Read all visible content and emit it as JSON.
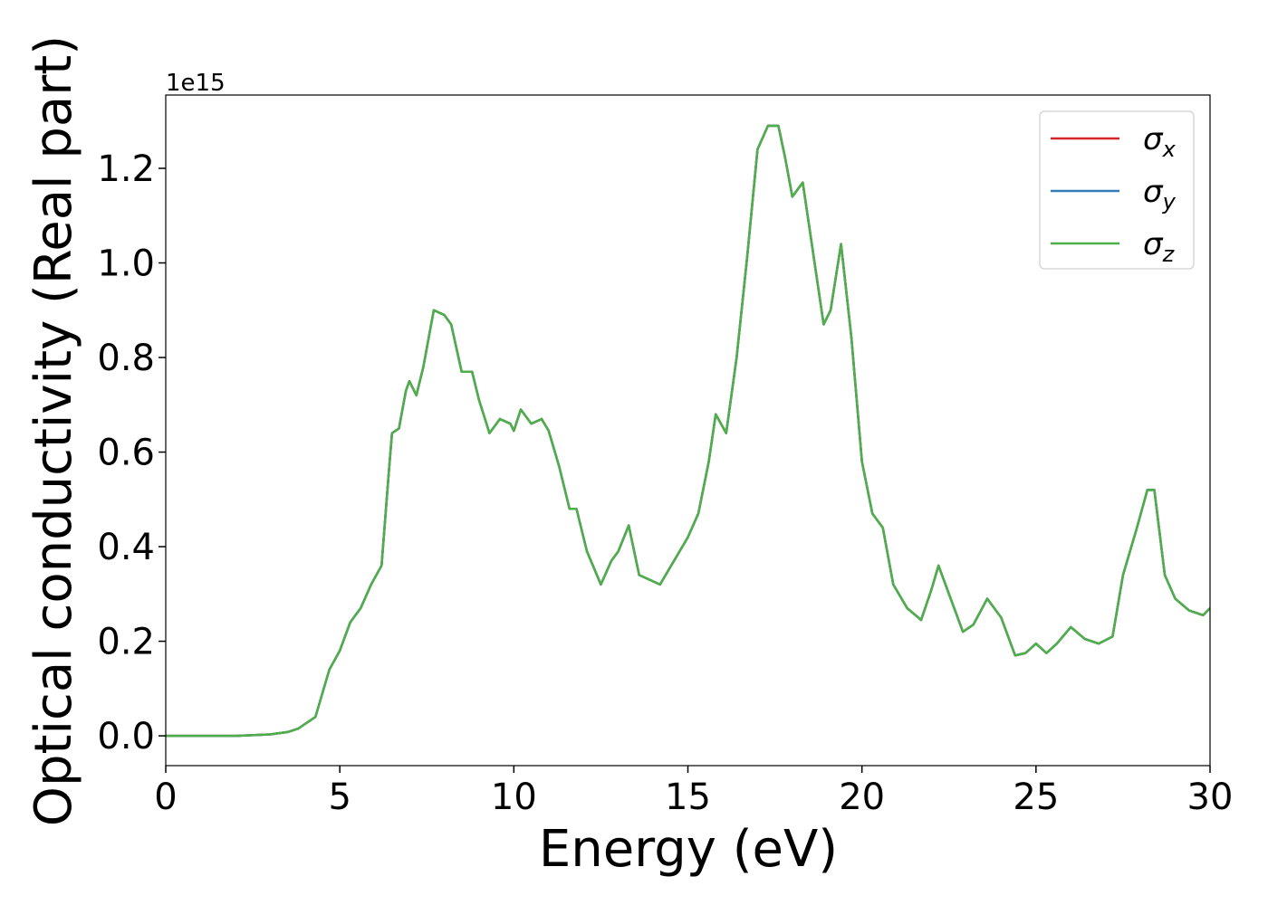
{
  "chart_data": {
    "type": "line",
    "xlabel": "Energy (eV)",
    "ylabel": "Optical conductivity (Real part)",
    "y_offset_label": "1e15",
    "x": [
      0,
      1,
      2,
      3,
      3.5,
      3.8,
      4,
      4.3,
      4.5,
      4.7,
      5,
      5.3,
      5.6,
      5.9,
      6.2,
      6.4,
      6.5,
      6.7,
      6.9,
      7,
      7.2,
      7.4,
      7.7,
      8,
      8.2,
      8.5,
      8.8,
      9,
      9.3,
      9.6,
      9.9,
      10,
      10.2,
      10.5,
      10.8,
      11,
      11.3,
      11.6,
      11.8,
      12.1,
      12.5,
      12.8,
      13,
      13.3,
      13.6,
      13.9,
      14.2,
      14.6,
      15,
      15.3,
      15.6,
      15.8,
      16.1,
      16.4,
      16.7,
      17,
      17.3,
      17.6,
      17.8,
      18,
      18.3,
      18.6,
      18.9,
      19.1,
      19.4,
      19.7,
      20,
      20.3,
      20.6,
      20.9,
      21.3,
      21.7,
      22,
      22.2,
      22.5,
      22.9,
      23.2,
      23.6,
      24,
      24.4,
      24.7,
      25,
      25.3,
      25.6,
      26,
      26.4,
      26.8,
      27.2,
      27.5,
      27.9,
      28.2,
      28.4,
      28.7,
      29,
      29.4,
      29.8,
      30
    ],
    "series": [
      {
        "name": "σx",
        "color": "#d62728",
        "values": [
          0,
          0,
          0,
          0.003,
          0.008,
          0.015,
          0.025,
          0.04,
          0.09,
          0.14,
          0.18,
          0.24,
          0.27,
          0.32,
          0.36,
          0.55,
          0.64,
          0.65,
          0.73,
          0.75,
          0.72,
          0.78,
          0.9,
          0.89,
          0.87,
          0.77,
          0.77,
          0.71,
          0.64,
          0.67,
          0.66,
          0.645,
          0.69,
          0.66,
          0.67,
          0.645,
          0.57,
          0.48,
          0.48,
          0.39,
          0.32,
          0.37,
          0.39,
          0.445,
          0.34,
          0.33,
          0.32,
          0.37,
          0.42,
          0.47,
          0.58,
          0.68,
          0.64,
          0.8,
          1.01,
          1.24,
          1.29,
          1.29,
          1.22,
          1.14,
          1.17,
          1.02,
          0.87,
          0.9,
          1.04,
          0.84,
          0.58,
          0.47,
          0.44,
          0.32,
          0.27,
          0.245,
          0.31,
          0.36,
          0.3,
          0.22,
          0.235,
          0.29,
          0.25,
          0.17,
          0.175,
          0.195,
          0.175,
          0.195,
          0.23,
          0.205,
          0.195,
          0.21,
          0.34,
          0.44,
          0.52,
          0.52,
          0.34,
          0.29,
          0.265,
          0.255,
          0.27
        ]
      },
      {
        "name": "σy",
        "color": "#377eb8",
        "values": [
          0,
          0,
          0,
          0.003,
          0.008,
          0.015,
          0.025,
          0.04,
          0.09,
          0.14,
          0.18,
          0.24,
          0.27,
          0.32,
          0.36,
          0.55,
          0.64,
          0.65,
          0.73,
          0.75,
          0.72,
          0.78,
          0.9,
          0.89,
          0.87,
          0.77,
          0.77,
          0.71,
          0.64,
          0.67,
          0.66,
          0.645,
          0.69,
          0.66,
          0.67,
          0.645,
          0.57,
          0.48,
          0.48,
          0.39,
          0.32,
          0.37,
          0.39,
          0.445,
          0.34,
          0.33,
          0.32,
          0.37,
          0.42,
          0.47,
          0.58,
          0.68,
          0.64,
          0.8,
          1.01,
          1.24,
          1.29,
          1.29,
          1.22,
          1.14,
          1.17,
          1.02,
          0.87,
          0.9,
          1.04,
          0.84,
          0.58,
          0.47,
          0.44,
          0.32,
          0.27,
          0.245,
          0.31,
          0.36,
          0.3,
          0.22,
          0.235,
          0.29,
          0.25,
          0.17,
          0.175,
          0.195,
          0.175,
          0.195,
          0.23,
          0.205,
          0.195,
          0.21,
          0.34,
          0.44,
          0.52,
          0.52,
          0.34,
          0.29,
          0.265,
          0.255,
          0.27
        ]
      },
      {
        "name": "σz",
        "color": "#4daf4a",
        "values": [
          0,
          0,
          0,
          0.003,
          0.008,
          0.015,
          0.025,
          0.04,
          0.09,
          0.14,
          0.18,
          0.24,
          0.27,
          0.32,
          0.36,
          0.55,
          0.64,
          0.65,
          0.73,
          0.75,
          0.72,
          0.78,
          0.9,
          0.89,
          0.87,
          0.77,
          0.77,
          0.71,
          0.64,
          0.67,
          0.66,
          0.645,
          0.69,
          0.66,
          0.67,
          0.645,
          0.57,
          0.48,
          0.48,
          0.39,
          0.32,
          0.37,
          0.39,
          0.445,
          0.34,
          0.33,
          0.32,
          0.37,
          0.42,
          0.47,
          0.58,
          0.68,
          0.64,
          0.8,
          1.01,
          1.24,
          1.29,
          1.29,
          1.22,
          1.14,
          1.17,
          1.02,
          0.87,
          0.9,
          1.04,
          0.84,
          0.58,
          0.47,
          0.44,
          0.32,
          0.27,
          0.245,
          0.31,
          0.36,
          0.3,
          0.22,
          0.235,
          0.29,
          0.25,
          0.17,
          0.175,
          0.195,
          0.175,
          0.195,
          0.23,
          0.205,
          0.195,
          0.21,
          0.34,
          0.44,
          0.52,
          0.52,
          0.34,
          0.29,
          0.265,
          0.255,
          0.27
        ]
      }
    ],
    "xlim": [
      0,
      30
    ],
    "xticks": [
      0,
      5,
      10,
      15,
      20,
      25,
      30
    ],
    "ylim": [
      -0.063,
      1.355
    ],
    "yticks": [
      {
        "value": 0,
        "label": "0.0"
      },
      0.2,
      0.4,
      0.6,
      0.8,
      {
        "value": 1,
        "label": "1.0"
      },
      1.2
    ],
    "legend": "upper right",
    "grid": false
  }
}
